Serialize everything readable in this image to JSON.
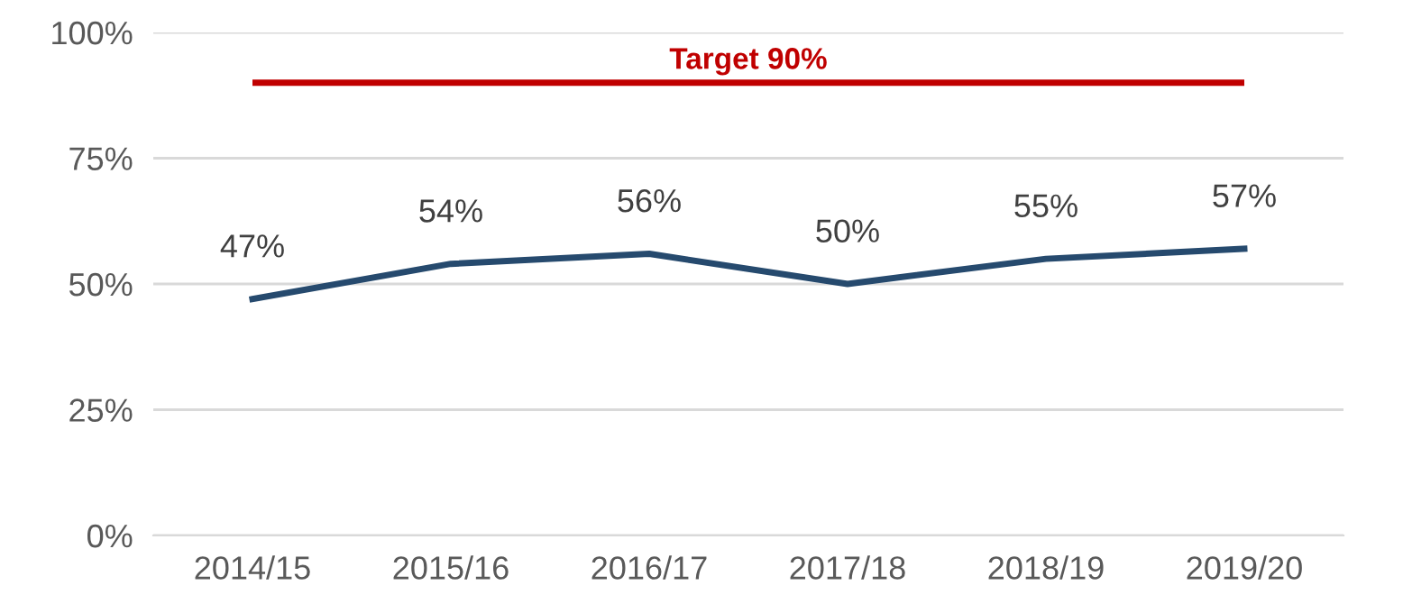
{
  "chart_data": {
    "type": "line",
    "categories": [
      "2014/15",
      "2015/16",
      "2016/17",
      "2017/18",
      "2018/19",
      "2019/20"
    ],
    "series": [
      {
        "color": "#264a6e",
        "values": [
          47,
          54,
          56,
          50,
          55,
          57
        ],
        "value_labels": [
          "47%",
          "54%",
          "56%",
          "50%",
          "55%",
          "57%"
        ]
      }
    ],
    "ylim": [
      0,
      100
    ],
    "yticks": [
      {
        "value": 0,
        "label": "0%"
      },
      {
        "value": 25,
        "label": "25%"
      },
      {
        "value": 50,
        "label": "50%"
      },
      {
        "value": 75,
        "label": "75%"
      },
      {
        "value": 100,
        "label": "100%"
      }
    ],
    "grid": "y",
    "marker": "none",
    "line_style": "solid",
    "ref_lines": [
      {
        "axis": "y",
        "value": 90,
        "label": "Target 90%",
        "color": "#c00000",
        "line_style": "solid"
      }
    ]
  }
}
